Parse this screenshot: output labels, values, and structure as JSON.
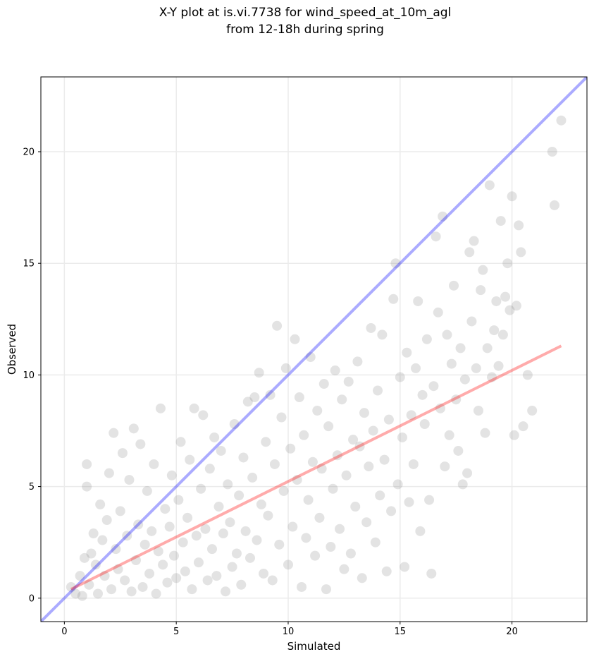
{
  "chart_data": {
    "type": "scatter",
    "title": "X-Y plot at is.vi.7738 for wind_speed_at_10m_agl",
    "subtitle": "from 12-18h during spring",
    "xlabel": "Simulated",
    "ylabel": "Observed",
    "xlim": [
      -1.05,
      23.35
    ],
    "ylim": [
      -1.05,
      23.35
    ],
    "xticks": [
      0,
      5,
      10,
      15,
      20
    ],
    "yticks": [
      0,
      5,
      10,
      15,
      20
    ],
    "grid": true,
    "point_color": "#808080",
    "point_opacity": 0.22,
    "scatter_points": [
      [
        0.3,
        0.5
      ],
      [
        0.5,
        0.2
      ],
      [
        0.7,
        1.0
      ],
      [
        0.8,
        0.1
      ],
      [
        0.9,
        1.8
      ],
      [
        1.0,
        6.0
      ],
      [
        1.0,
        5.0
      ],
      [
        1.1,
        0.6
      ],
      [
        1.2,
        2.0
      ],
      [
        1.3,
        2.9
      ],
      [
        1.4,
        1.5
      ],
      [
        1.5,
        0.2
      ],
      [
        1.6,
        4.2
      ],
      [
        1.7,
        2.6
      ],
      [
        1.8,
        1.0
      ],
      [
        1.9,
        3.5
      ],
      [
        2.0,
        5.6
      ],
      [
        2.1,
        0.4
      ],
      [
        2.2,
        7.4
      ],
      [
        2.3,
        2.2
      ],
      [
        2.4,
        1.3
      ],
      [
        2.5,
        3.9
      ],
      [
        2.6,
        6.5
      ],
      [
        2.7,
        0.8
      ],
      [
        2.8,
        2.8
      ],
      [
        2.9,
        5.3
      ],
      [
        3.0,
        0.3
      ],
      [
        3.1,
        7.6
      ],
      [
        3.2,
        1.7
      ],
      [
        3.3,
        3.3
      ],
      [
        3.4,
        6.9
      ],
      [
        3.5,
        0.5
      ],
      [
        3.6,
        2.4
      ],
      [
        3.7,
        4.8
      ],
      [
        3.8,
        1.1
      ],
      [
        3.9,
        3.0
      ],
      [
        4.0,
        6.0
      ],
      [
        4.1,
        0.2
      ],
      [
        4.2,
        2.1
      ],
      [
        4.3,
        8.5
      ],
      [
        4.4,
        1.5
      ],
      [
        4.5,
        4.0
      ],
      [
        4.6,
        0.7
      ],
      [
        4.7,
        3.2
      ],
      [
        4.8,
        5.5
      ],
      [
        4.9,
        1.9
      ],
      [
        5.0,
        0.9
      ],
      [
        5.1,
        4.4
      ],
      [
        5.2,
        7.0
      ],
      [
        5.3,
        2.5
      ],
      [
        5.4,
        1.2
      ],
      [
        5.5,
        3.6
      ],
      [
        5.6,
        6.2
      ],
      [
        5.7,
        0.4
      ],
      [
        5.8,
        8.5
      ],
      [
        5.9,
        2.8
      ],
      [
        6.0,
        1.6
      ],
      [
        6.1,
        4.9
      ],
      [
        6.2,
        8.2
      ],
      [
        6.3,
        3.1
      ],
      [
        6.4,
        0.8
      ],
      [
        6.5,
        5.8
      ],
      [
        6.6,
        2.2
      ],
      [
        6.7,
        7.2
      ],
      [
        6.8,
        1.0
      ],
      [
        6.9,
        4.1
      ],
      [
        7.0,
        6.6
      ],
      [
        7.1,
        2.9
      ],
      [
        7.2,
        0.3
      ],
      [
        7.3,
        5.1
      ],
      [
        7.4,
        3.4
      ],
      [
        7.5,
        1.4
      ],
      [
        7.6,
        7.8
      ],
      [
        7.7,
        2.0
      ],
      [
        7.8,
        4.6
      ],
      [
        7.9,
        0.6
      ],
      [
        8.0,
        6.3
      ],
      [
        8.1,
        3.0
      ],
      [
        8.2,
        8.8
      ],
      [
        8.3,
        1.8
      ],
      [
        8.4,
        5.4
      ],
      [
        8.5,
        9.0
      ],
      [
        8.6,
        2.6
      ],
      [
        8.7,
        10.1
      ],
      [
        8.8,
        4.2
      ],
      [
        8.9,
        1.1
      ],
      [
        9.0,
        7.0
      ],
      [
        9.1,
        3.7
      ],
      [
        9.2,
        9.1
      ],
      [
        9.3,
        0.8
      ],
      [
        9.4,
        6.0
      ],
      [
        9.5,
        12.2
      ],
      [
        9.6,
        2.4
      ],
      [
        9.7,
        8.1
      ],
      [
        9.8,
        4.8
      ],
      [
        9.9,
        10.3
      ],
      [
        10.0,
        1.5
      ],
      [
        10.1,
        6.7
      ],
      [
        10.2,
        3.2
      ],
      [
        10.3,
        11.6
      ],
      [
        10.4,
        5.3
      ],
      [
        10.5,
        9.0
      ],
      [
        10.6,
        0.5
      ],
      [
        10.7,
        7.3
      ],
      [
        10.8,
        2.7
      ],
      [
        10.9,
        4.4
      ],
      [
        11.0,
        10.8
      ],
      [
        11.1,
        6.1
      ],
      [
        11.2,
        1.9
      ],
      [
        11.3,
        8.4
      ],
      [
        11.4,
        3.6
      ],
      [
        11.5,
        5.8
      ],
      [
        11.6,
        9.6
      ],
      [
        11.7,
        0.4
      ],
      [
        11.8,
        7.7
      ],
      [
        11.9,
        2.3
      ],
      [
        12.0,
        4.9
      ],
      [
        12.1,
        10.2
      ],
      [
        12.2,
        6.4
      ],
      [
        12.3,
        3.1
      ],
      [
        12.4,
        8.9
      ],
      [
        12.5,
        1.3
      ],
      [
        12.6,
        5.5
      ],
      [
        12.7,
        9.7
      ],
      [
        12.8,
        2.0
      ],
      [
        12.9,
        7.1
      ],
      [
        13.0,
        4.1
      ],
      [
        13.1,
        10.6
      ],
      [
        13.2,
        6.8
      ],
      [
        13.3,
        0.9
      ],
      [
        13.4,
        8.3
      ],
      [
        13.5,
        3.4
      ],
      [
        13.6,
        5.9
      ],
      [
        13.7,
        12.1
      ],
      [
        13.8,
        7.5
      ],
      [
        13.9,
        2.5
      ],
      [
        14.0,
        9.3
      ],
      [
        14.1,
        4.6
      ],
      [
        14.2,
        11.8
      ],
      [
        14.3,
        6.2
      ],
      [
        14.4,
        1.2
      ],
      [
        14.5,
        8.0
      ],
      [
        14.6,
        3.9
      ],
      [
        14.7,
        13.4
      ],
      [
        14.8,
        15.0
      ],
      [
        14.9,
        5.1
      ],
      [
        15.0,
        9.9
      ],
      [
        15.1,
        7.2
      ],
      [
        15.2,
        1.4
      ],
      [
        15.3,
        11.0
      ],
      [
        15.4,
        4.3
      ],
      [
        15.5,
        8.2
      ],
      [
        15.6,
        6.0
      ],
      [
        15.7,
        10.3
      ],
      [
        15.8,
        13.3
      ],
      [
        15.9,
        3.0
      ],
      [
        16.0,
        9.1
      ],
      [
        16.1,
        7.8
      ],
      [
        16.2,
        11.6
      ],
      [
        16.3,
        4.4
      ],
      [
        16.4,
        1.1
      ],
      [
        16.5,
        9.5
      ],
      [
        16.6,
        16.2
      ],
      [
        16.7,
        12.8
      ],
      [
        16.8,
        8.5
      ],
      [
        16.9,
        17.1
      ],
      [
        17.0,
        5.9
      ],
      [
        17.1,
        11.8
      ],
      [
        17.2,
        7.3
      ],
      [
        17.3,
        10.5
      ],
      [
        17.4,
        14.0
      ],
      [
        17.5,
        8.9
      ],
      [
        17.6,
        6.6
      ],
      [
        17.7,
        11.2
      ],
      [
        17.8,
        5.1
      ],
      [
        17.9,
        9.8
      ],
      [
        18.0,
        5.6
      ],
      [
        18.1,
        15.5
      ],
      [
        18.2,
        12.4
      ],
      [
        18.3,
        16.0
      ],
      [
        18.4,
        10.3
      ],
      [
        18.5,
        8.4
      ],
      [
        18.6,
        13.8
      ],
      [
        18.7,
        14.7
      ],
      [
        18.8,
        7.4
      ],
      [
        18.9,
        11.2
      ],
      [
        19.0,
        18.5
      ],
      [
        19.1,
        9.9
      ],
      [
        19.2,
        12.0
      ],
      [
        19.3,
        13.3
      ],
      [
        19.4,
        10.4
      ],
      [
        19.5,
        16.9
      ],
      [
        19.6,
        11.8
      ],
      [
        19.7,
        13.5
      ],
      [
        19.8,
        15.0
      ],
      [
        19.9,
        12.9
      ],
      [
        20.0,
        18.0
      ],
      [
        20.1,
        7.3
      ],
      [
        20.2,
        13.1
      ],
      [
        20.3,
        16.7
      ],
      [
        20.4,
        15.5
      ],
      [
        20.5,
        7.7
      ],
      [
        20.7,
        10.0
      ],
      [
        20.9,
        8.4
      ],
      [
        21.8,
        20.0
      ],
      [
        21.9,
        17.6
      ],
      [
        22.2,
        21.4
      ]
    ],
    "series": [
      {
        "values": [
          [
            -1.05,
            -1.05
          ],
          [
            23.35,
            23.35
          ]
        ],
        "color": "#0000ff",
        "opacity": 0.33
      },
      {
        "values": [
          [
            0.3,
            0.4
          ],
          [
            22.2,
            11.3
          ]
        ],
        "color": "#ff0000",
        "opacity": 0.33
      }
    ]
  }
}
